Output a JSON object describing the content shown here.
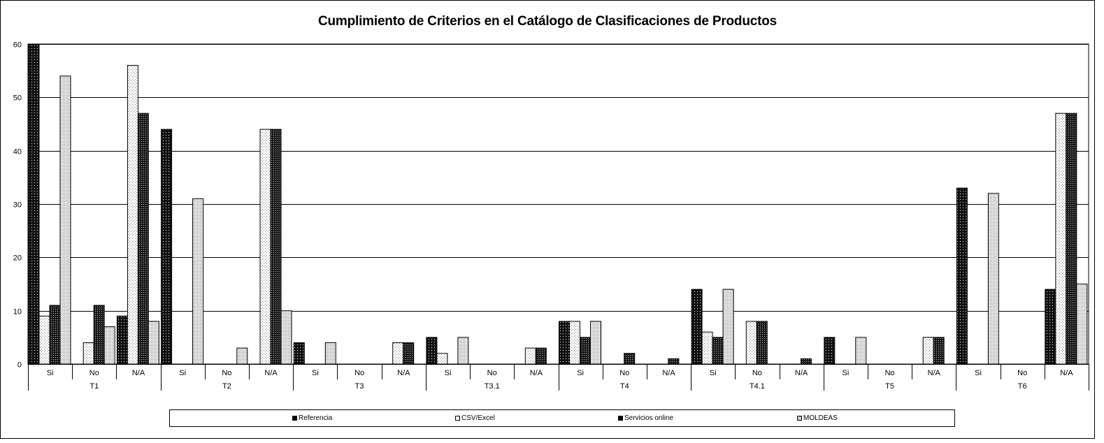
{
  "chart_data": {
    "type": "bar",
    "title": "Cumplimiento de Criterios en el Catálogo de Clasificaciones de Productos",
    "xlabel": "",
    "ylabel": "",
    "ylim": [
      0,
      60
    ],
    "yticks": [
      0,
      10,
      20,
      30,
      40,
      50,
      60
    ],
    "grid": true,
    "legend_position": "bottom",
    "groups": [
      "T1",
      "T2",
      "T3",
      "T3.1",
      "T4",
      "T4.1",
      "T5",
      "T6"
    ],
    "subcategories": [
      "Si",
      "No",
      "N/A"
    ],
    "series": [
      {
        "name": "Referencia",
        "color": "#111111",
        "pattern": "dark-dots",
        "values": [
          60,
          0,
          9,
          44,
          0,
          0,
          4,
          0,
          0,
          5,
          0,
          0,
          8,
          0,
          0,
          14,
          0,
          0,
          5,
          0,
          0,
          33,
          0,
          14
        ]
      },
      {
        "name": "CSV/Excel",
        "color": "#ffffff",
        "pattern": "light-dots",
        "values": [
          9,
          4,
          56,
          0,
          0,
          44,
          0,
          0,
          4,
          2,
          0,
          3,
          8,
          0,
          0,
          6,
          8,
          0,
          0,
          0,
          5,
          0,
          0,
          47
        ]
      },
      {
        "name": "Servicios online",
        "color": "#222222",
        "pattern": "dark-checker",
        "values": [
          11,
          11,
          47,
          0,
          0,
          44,
          0,
          0,
          4,
          0,
          0,
          3,
          5,
          2,
          1,
          5,
          8,
          1,
          0,
          0,
          5,
          0,
          0,
          47
        ]
      },
      {
        "name": "MOLDEAS",
        "color": "#eeeeee",
        "pattern": "dense-dots",
        "values": [
          54,
          7,
          8,
          31,
          3,
          10,
          4,
          0,
          0,
          5,
          0,
          0,
          8,
          0,
          0,
          14,
          0,
          0,
          5,
          0,
          0,
          32,
          0,
          15
        ]
      }
    ]
  }
}
